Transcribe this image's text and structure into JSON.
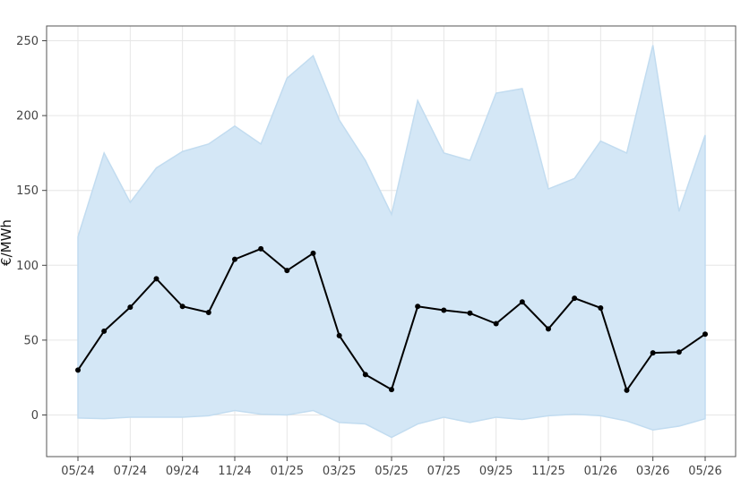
{
  "chart_data": {
    "type": "line",
    "ylabel": "€/MWh",
    "xlabel": "",
    "ylim": [
      -28,
      260
    ],
    "yticks": [
      0,
      50,
      100,
      150,
      200,
      250
    ],
    "xtick_labels": [
      "05/24",
      "07/24",
      "09/24",
      "11/24",
      "01/25",
      "03/25",
      "05/25",
      "07/25",
      "09/25",
      "11/25",
      "01/26",
      "03/26",
      "05/26"
    ],
    "grid": true,
    "colors": {
      "band_fill": "#d4e7f6",
      "band_edge": "#c2dcf0",
      "line": "#000000",
      "grid": "#e6e6e6",
      "frame": "#555555"
    },
    "series": [
      {
        "type": "line",
        "values": [
          30,
          56,
          72,
          91,
          72.5,
          68.5,
          104,
          111,
          96.5,
          108,
          53,
          27,
          17,
          72.5,
          70,
          68,
          61,
          75.5,
          57.5,
          78,
          71.5,
          16.5,
          41.5,
          42,
          54
        ]
      },
      {
        "type": "area-band",
        "upper": [
          119,
          175,
          142,
          165,
          176,
          181,
          193,
          181,
          225,
          240,
          197,
          170,
          134,
          210,
          175,
          170,
          215,
          218,
          151,
          158,
          183,
          175,
          247,
          136,
          187
        ],
        "lower": [
          -2,
          -2.5,
          -1.5,
          -1.5,
          -1.5,
          -0.5,
          3,
          0.5,
          0,
          3,
          -5,
          -6,
          -15,
          -6,
          -1.5,
          -5,
          -1.5,
          -3,
          -0.5,
          0.5,
          -0.5,
          -4,
          -10,
          -7.5,
          -2.5
        ]
      }
    ]
  }
}
